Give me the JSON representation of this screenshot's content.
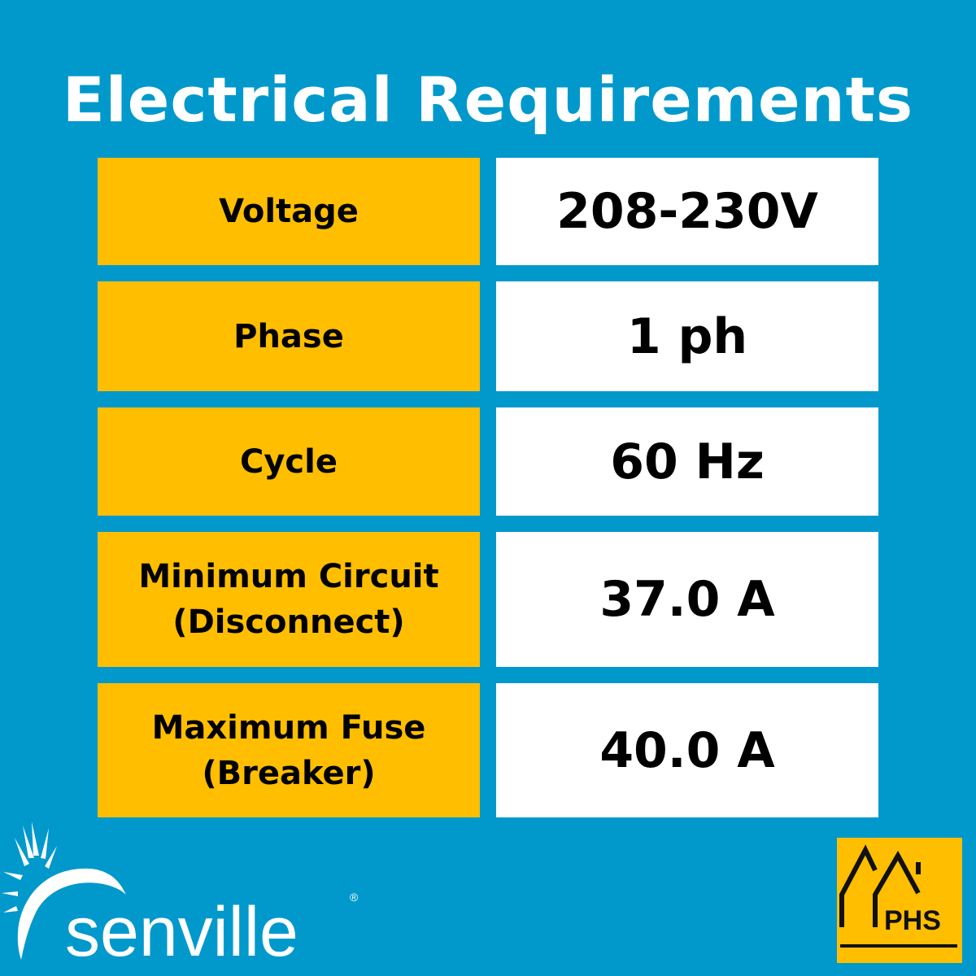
{
  "title": "Electrical Requirements",
  "rows": [
    {
      "label": "Voltage",
      "value": "208-230V"
    },
    {
      "label": "Phase",
      "value": "1 ph"
    },
    {
      "label": "Cycle",
      "value": "60 Hz"
    },
    {
      "label": "Minimum Circuit\n(Disconnect)",
      "value": "37.0 A"
    },
    {
      "label": "Maximum Fuse\n(Breaker)",
      "value": "40.0 A"
    }
  ],
  "logos": {
    "brand": "senville",
    "registered": "®",
    "partner": "PHS"
  },
  "colors": {
    "background": "#0199cc",
    "label_bg": "#ffbe00",
    "value_bg": "#ffffff"
  }
}
